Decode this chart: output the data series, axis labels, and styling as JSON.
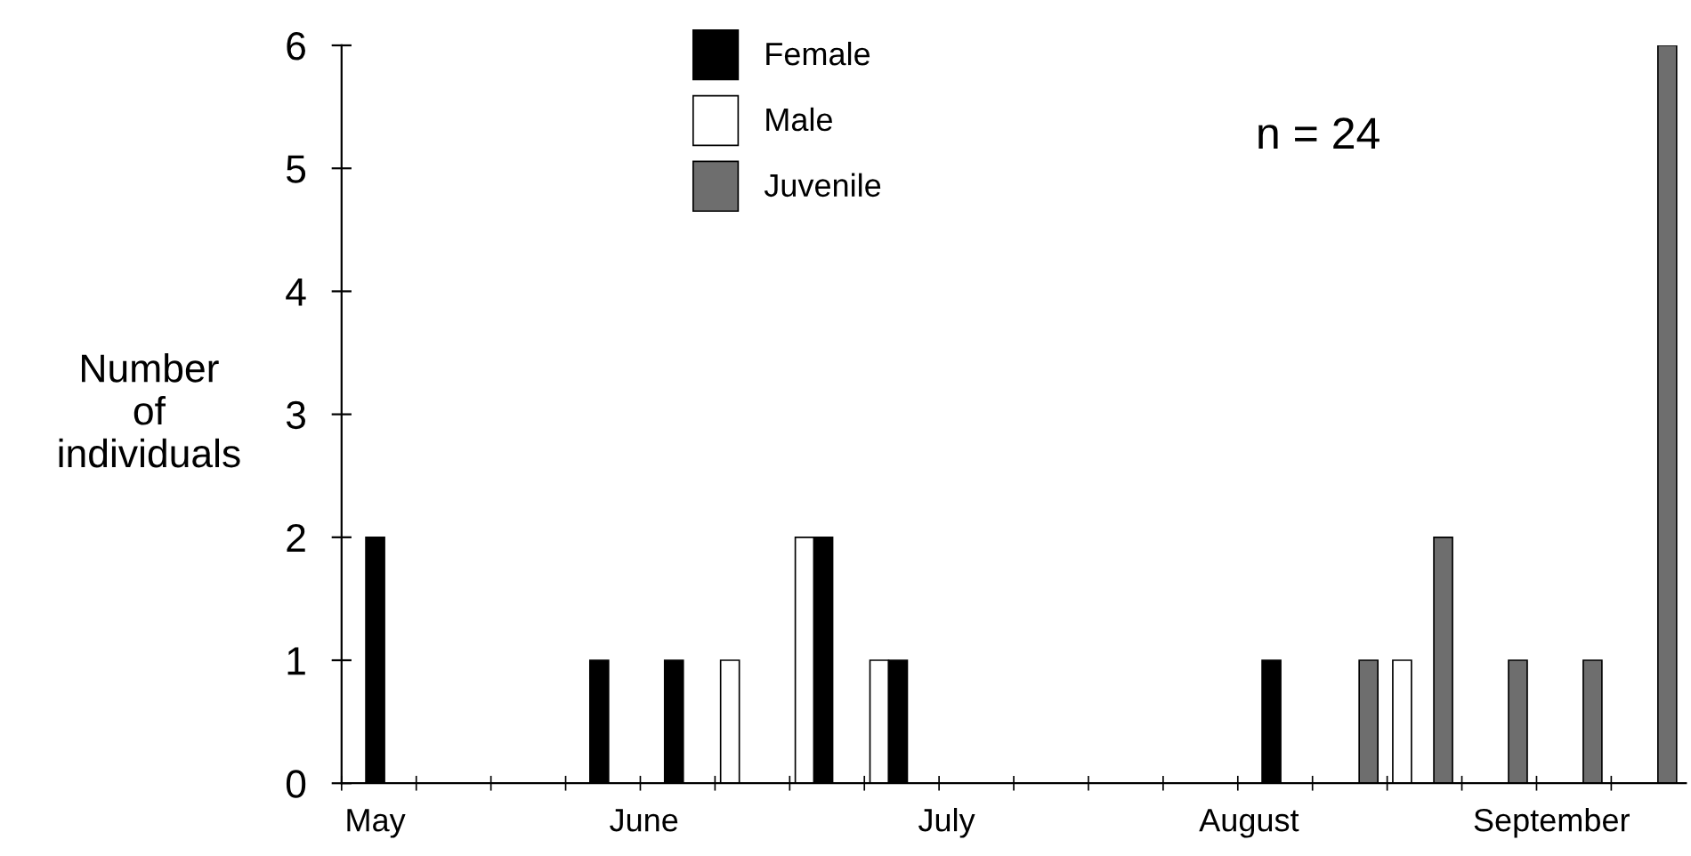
{
  "chart_data": {
    "type": "bar",
    "ylabel": "Number\nof\nindividuals",
    "categories": [
      null,
      null,
      null,
      null,
      null,
      null,
      null,
      null,
      null,
      null,
      null,
      null,
      null,
      null,
      null,
      null,
      null,
      null
    ],
    "series": [
      {
        "name": "Male",
        "color": "#ffffff",
        "values": [
          0,
          0,
          0,
          0,
          0,
          1,
          2,
          1,
          0,
          0,
          0,
          0,
          0,
          0,
          1,
          0,
          0,
          0
        ]
      },
      {
        "name": "Female",
        "color": "#000000",
        "values": [
          2,
          0,
          0,
          1,
          1,
          0,
          2,
          1,
          0,
          0,
          0,
          0,
          1,
          0,
          0,
          0,
          0,
          0
        ]
      },
      {
        "name": "Juvenile",
        "color": "#6e6e6e",
        "values": [
          0,
          0,
          0,
          0,
          0,
          0,
          0,
          0,
          0,
          0,
          0,
          0,
          0,
          1,
          2,
          1,
          1,
          6
        ]
      }
    ],
    "ylim": [
      0,
      6
    ],
    "yticks": [
      0,
      1,
      2,
      3,
      4,
      5,
      6
    ],
    "annotations": [
      "n = 24",
      "May",
      "June",
      "July",
      "August",
      "September"
    ],
    "legend": "top",
    "grid": false
  }
}
